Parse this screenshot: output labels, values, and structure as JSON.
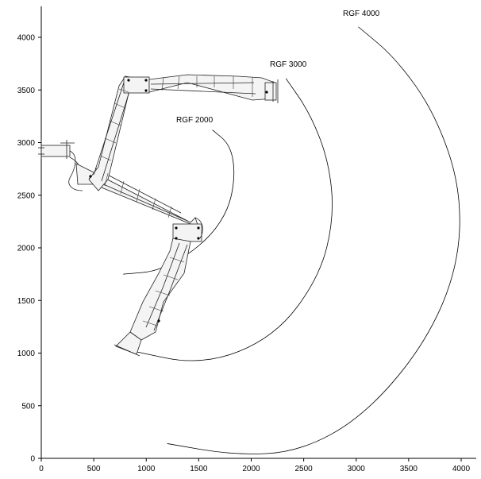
{
  "diagram": {
    "x_ticks": [
      "0",
      "500",
      "1000",
      "1500",
      "2000",
      "2500",
      "3000",
      "3500",
      "4000"
    ],
    "y_ticks": [
      "0",
      "500",
      "1000",
      "1500",
      "2000",
      "2500",
      "3000",
      "3500",
      "4000"
    ],
    "x_range": [
      0,
      4200
    ],
    "y_range": [
      0,
      4300
    ],
    "reach_curves": [
      {
        "label": "RGF 2000",
        "reach_mm": 2000
      },
      {
        "label": "RGF 3000",
        "reach_mm": 3000
      },
      {
        "label": "RGF 4000",
        "reach_mm": 4000
      }
    ]
  }
}
